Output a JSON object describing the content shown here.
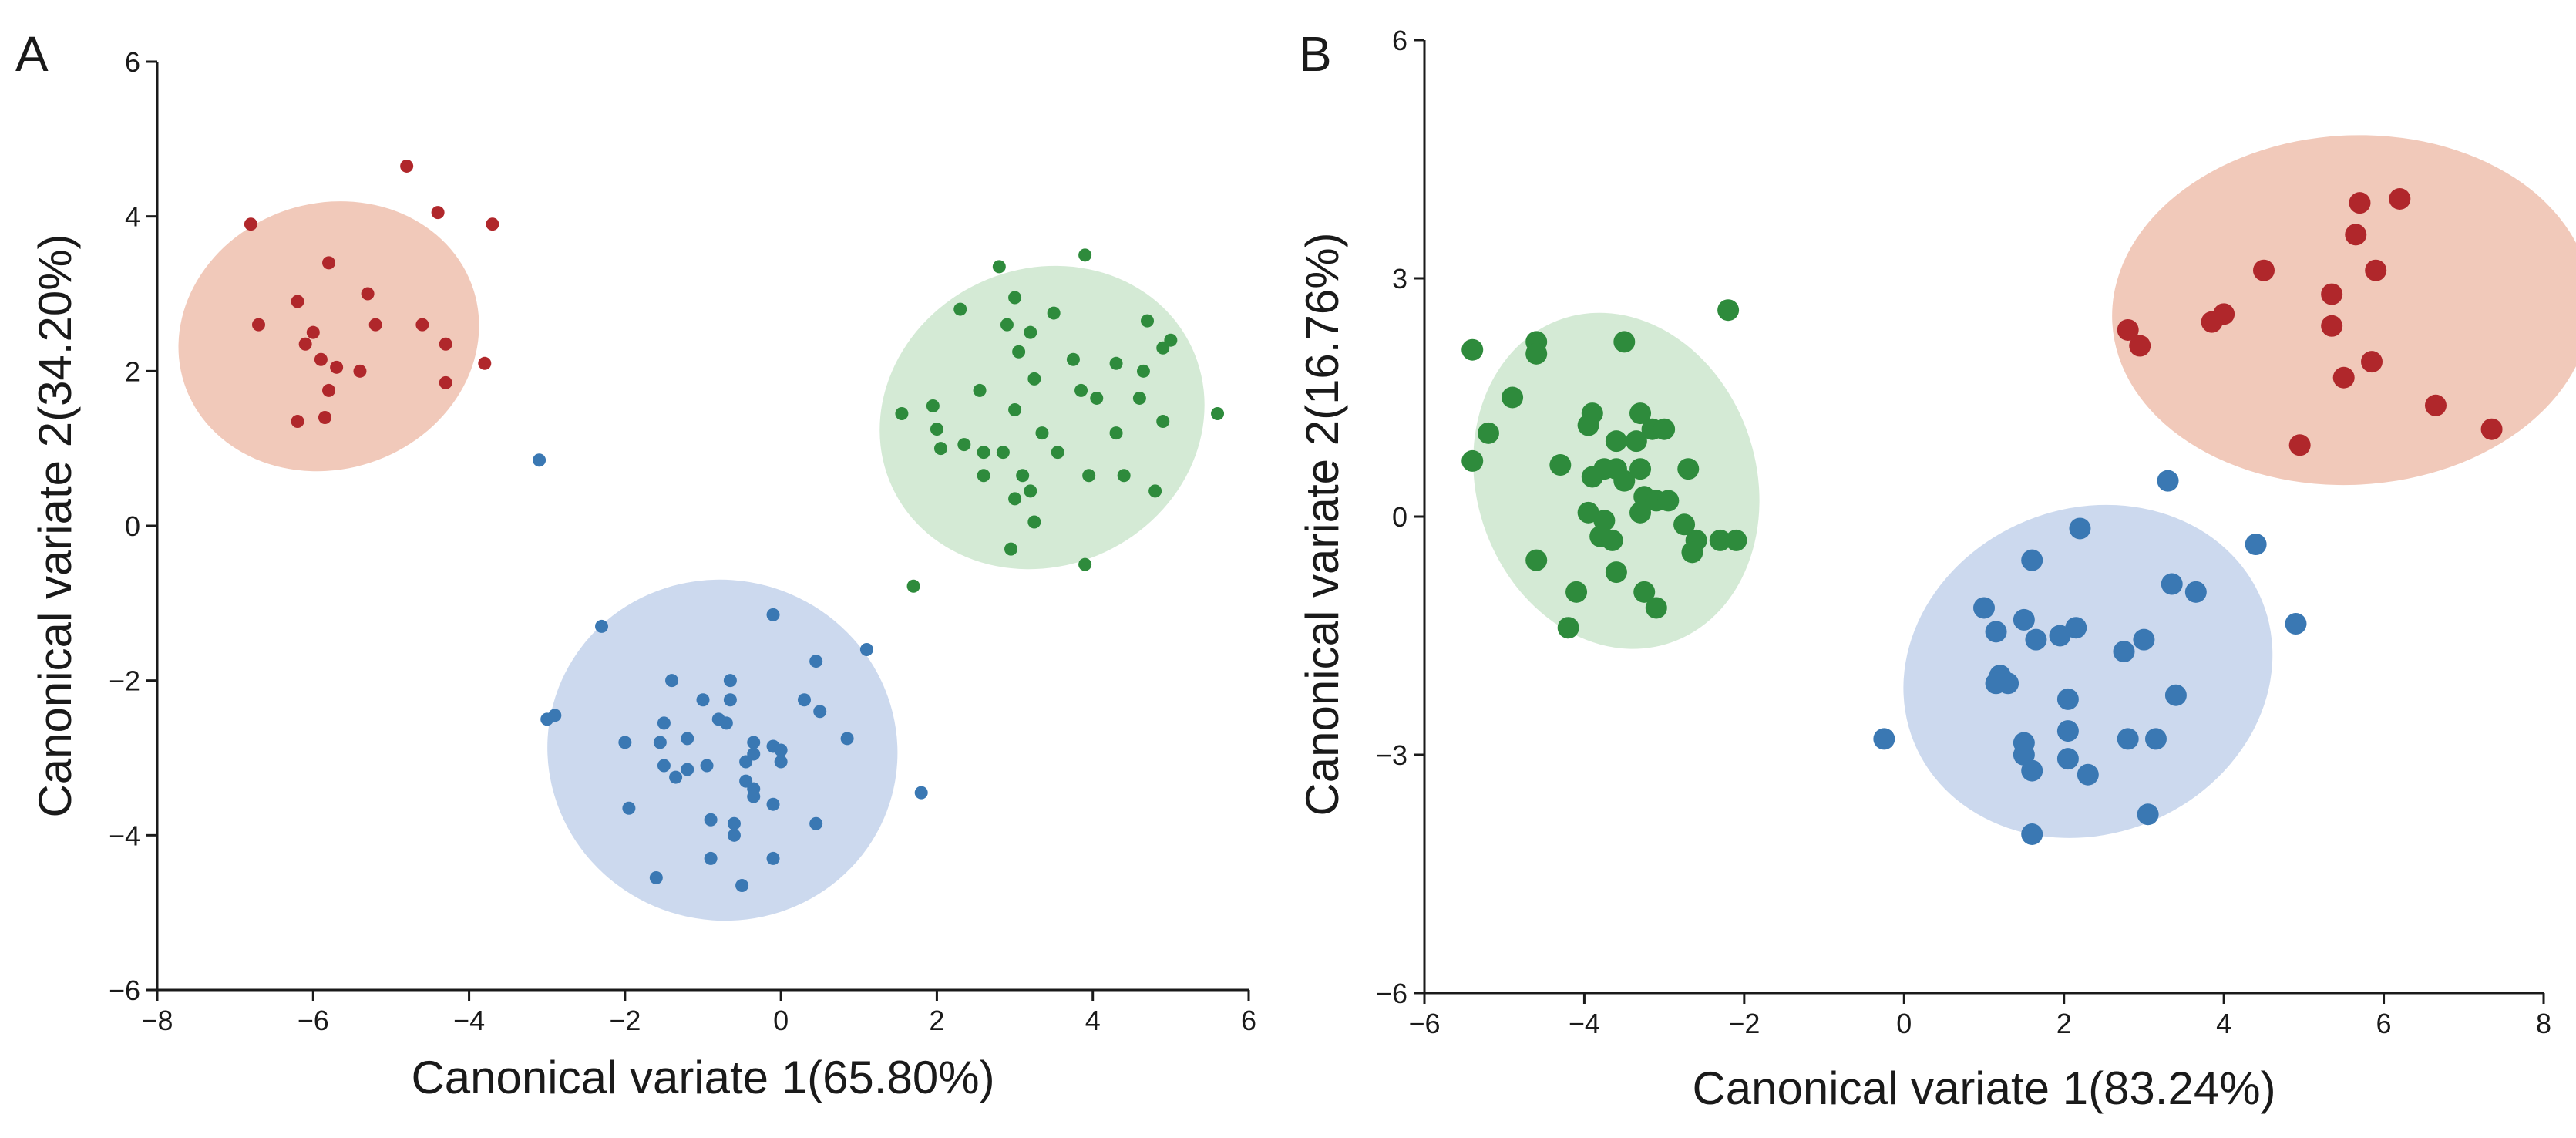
{
  "chart_data": [
    {
      "type": "scatter",
      "panel_label": "A",
      "xlabel": "Canonical variate 1(65.80%)",
      "ylabel": "Canonical variate 2(34.20%)",
      "xlim": [
        -8,
        6
      ],
      "ylim": [
        -6,
        6
      ],
      "xticks": [
        -8,
        -6,
        -4,
        -2,
        0,
        2,
        4,
        6
      ],
      "yticks": [
        -6,
        -4,
        -2,
        0,
        2,
        4,
        6
      ],
      "xtick_labels": [
        "−8",
        "−6",
        "−4",
        "−2",
        "0",
        "2",
        "4",
        "6"
      ],
      "ytick_labels": [
        "−6",
        "−4",
        "−2",
        "0",
        "2",
        "4",
        "6"
      ],
      "grid": false,
      "legend": "none",
      "point_style": "small",
      "series": [
        {
          "color": "#b0272b",
          "ellipse_color": "#efbfae",
          "ellipse": {
            "cx": -5.8,
            "cy": 2.45,
            "rx": 1.95,
            "ry": 1.72,
            "angle": -18
          },
          "points": [
            [
              -6.8,
              3.9
            ],
            [
              -4.8,
              4.65
            ],
            [
              -4.4,
              4.05
            ],
            [
              -3.7,
              3.9
            ],
            [
              -6.7,
              2.6
            ],
            [
              -6.2,
              2.9
            ],
            [
              -5.8,
              3.4
            ],
            [
              -5.3,
              3.0
            ],
            [
              -6.0,
              2.5
            ],
            [
              -6.1,
              2.35
            ],
            [
              -5.9,
              2.15
            ],
            [
              -5.7,
              2.05
            ],
            [
              -5.4,
              2.0
            ],
            [
              -5.2,
              2.6
            ],
            [
              -4.6,
              2.6
            ],
            [
              -4.3,
              2.35
            ],
            [
              -3.8,
              2.1
            ],
            [
              -5.8,
              1.75
            ],
            [
              -5.85,
              1.4
            ],
            [
              -6.2,
              1.35
            ],
            [
              -4.3,
              1.85
            ]
          ]
        },
        {
          "color": "#2e8b3c",
          "ellipse_color": "#cde6ce",
          "ellipse": {
            "cx": 3.35,
            "cy": 1.4,
            "rx": 2.12,
            "ry": 1.92,
            "angle": -25
          },
          "points": [
            [
              2.8,
              3.35
            ],
            [
              3.9,
              3.5
            ],
            [
              2.3,
              2.8
            ],
            [
              3.0,
              2.95
            ],
            [
              3.5,
              2.75
            ],
            [
              2.9,
              2.6
            ],
            [
              3.2,
              2.5
            ],
            [
              4.7,
              2.65
            ],
            [
              5.0,
              2.4
            ],
            [
              4.9,
              2.3
            ],
            [
              3.05,
              2.25
            ],
            [
              3.75,
              2.15
            ],
            [
              4.3,
              2.1
            ],
            [
              4.65,
              2.0
            ],
            [
              3.25,
              1.9
            ],
            [
              2.55,
              1.75
            ],
            [
              3.85,
              1.75
            ],
            [
              4.05,
              1.65
            ],
            [
              4.6,
              1.65
            ],
            [
              1.95,
              1.55
            ],
            [
              1.55,
              1.45
            ],
            [
              5.6,
              1.45
            ],
            [
              3.0,
              1.5
            ],
            [
              4.9,
              1.35
            ],
            [
              2.0,
              1.25
            ],
            [
              3.35,
              1.2
            ],
            [
              4.3,
              1.2
            ],
            [
              2.05,
              1.0
            ],
            [
              2.35,
              1.05
            ],
            [
              2.85,
              0.95
            ],
            [
              3.55,
              0.95
            ],
            [
              2.6,
              0.95
            ],
            [
              2.6,
              0.65
            ],
            [
              3.1,
              0.65
            ],
            [
              3.95,
              0.65
            ],
            [
              4.4,
              0.65
            ],
            [
              3.2,
              0.45
            ],
            [
              3.0,
              0.35
            ],
            [
              4.8,
              0.45
            ],
            [
              3.25,
              0.05
            ],
            [
              2.95,
              -0.3
            ],
            [
              3.9,
              -0.5
            ],
            [
              1.7,
              -0.78
            ]
          ]
        },
        {
          "color": "#3a78b3",
          "ellipse_color": "#c3d2eb",
          "ellipse": {
            "cx": -0.75,
            "cy": -2.9,
            "rx": 2.25,
            "ry": 2.2,
            "angle": 15
          },
          "points": [
            [
              -3.1,
              0.85
            ],
            [
              -0.1,
              -1.15
            ],
            [
              1.1,
              -1.6
            ],
            [
              -2.3,
              -1.3
            ],
            [
              0.45,
              -1.75
            ],
            [
              -1.4,
              -2.0
            ],
            [
              -0.65,
              -2.0
            ],
            [
              -1.0,
              -2.25
            ],
            [
              -0.65,
              -2.25
            ],
            [
              0.3,
              -2.25
            ],
            [
              -3.0,
              -2.5
            ],
            [
              -2.9,
              -2.45
            ],
            [
              -1.5,
              -2.55
            ],
            [
              -0.8,
              -2.5
            ],
            [
              -0.7,
              -2.55
            ],
            [
              0.5,
              -2.4
            ],
            [
              -2.0,
              -2.8
            ],
            [
              -1.55,
              -2.8
            ],
            [
              -1.2,
              -2.75
            ],
            [
              -0.35,
              -2.8
            ],
            [
              -0.1,
              -2.85
            ],
            [
              0.85,
              -2.75
            ],
            [
              0.0,
              -2.9
            ],
            [
              -0.35,
              -2.95
            ],
            [
              -1.5,
              -3.1
            ],
            [
              -1.2,
              -3.15
            ],
            [
              -0.95,
              -3.1
            ],
            [
              -0.45,
              -3.05
            ],
            [
              0.0,
              -3.05
            ],
            [
              -1.35,
              -3.25
            ],
            [
              -0.45,
              -3.3
            ],
            [
              -0.35,
              -3.4
            ],
            [
              -0.35,
              -3.5
            ],
            [
              -0.1,
              -3.6
            ],
            [
              -1.95,
              -3.65
            ],
            [
              -0.9,
              -3.8
            ],
            [
              -0.6,
              -3.85
            ],
            [
              0.45,
              -3.85
            ],
            [
              1.8,
              -3.45
            ],
            [
              -0.6,
              -4.0
            ],
            [
              -0.9,
              -4.3
            ],
            [
              -0.1,
              -4.3
            ],
            [
              -1.6,
              -4.55
            ],
            [
              -0.5,
              -4.65
            ]
          ]
        }
      ]
    },
    {
      "type": "scatter",
      "panel_label": "B",
      "xlabel": "Canonical variate 1(83.24%)",
      "ylabel": "Canonical variate 2(16.76%)",
      "xlim": [
        -6,
        8
      ],
      "ylim": [
        -6,
        6
      ],
      "xticks": [
        -6,
        -4,
        -2,
        0,
        2,
        4,
        6,
        8
      ],
      "yticks": [
        -6,
        -3,
        0,
        3,
        6
      ],
      "xtick_labels": [
        "−6",
        "−4",
        "−2",
        "0",
        "2",
        "4",
        "6",
        "8"
      ],
      "ytick_labels": [
        "−6",
        "−3",
        "0",
        "3",
        "6"
      ],
      "grid": false,
      "legend": "none",
      "point_style": "large",
      "series": [
        {
          "color": "#b0272b",
          "ellipse_color": "#efbfae",
          "ellipse": {
            "cx": 5.6,
            "cy": 2.6,
            "rx": 3.0,
            "ry": 2.2,
            "angle": -3
          },
          "points": [
            [
              5.7,
              3.95
            ],
            [
              6.2,
              4.0
            ],
            [
              5.65,
              3.55
            ],
            [
              4.5,
              3.1
            ],
            [
              5.9,
              3.1
            ],
            [
              5.35,
              2.8
            ],
            [
              4.0,
              2.55
            ],
            [
              3.85,
              2.45
            ],
            [
              5.35,
              2.4
            ],
            [
              2.8,
              2.35
            ],
            [
              2.95,
              2.15
            ],
            [
              5.85,
              1.95
            ],
            [
              5.5,
              1.75
            ],
            [
              6.65,
              1.4
            ],
            [
              7.35,
              1.1
            ],
            [
              4.95,
              0.9
            ]
          ]
        },
        {
          "color": "#2e8b3c",
          "ellipse_color": "#cde6ce",
          "ellipse": {
            "cx": -3.6,
            "cy": 0.45,
            "rx": 1.75,
            "ry": 2.15,
            "angle": -18
          },
          "points": [
            [
              -2.2,
              2.6
            ],
            [
              -4.6,
              2.2
            ],
            [
              -3.5,
              2.2
            ],
            [
              -5.4,
              2.1
            ],
            [
              -4.6,
              2.05
            ],
            [
              -4.9,
              1.5
            ],
            [
              -3.9,
              1.3
            ],
            [
              -3.3,
              1.3
            ],
            [
              -3.95,
              1.15
            ],
            [
              -3.15,
              1.1
            ],
            [
              -3.0,
              1.1
            ],
            [
              -5.2,
              1.05
            ],
            [
              -3.6,
              0.95
            ],
            [
              -3.35,
              0.95
            ],
            [
              -5.4,
              0.7
            ],
            [
              -4.3,
              0.65
            ],
            [
              -3.75,
              0.6
            ],
            [
              -3.6,
              0.6
            ],
            [
              -3.3,
              0.6
            ],
            [
              -2.7,
              0.6
            ],
            [
              -3.9,
              0.5
            ],
            [
              -3.5,
              0.45
            ],
            [
              -3.25,
              0.25
            ],
            [
              -3.1,
              0.2
            ],
            [
              -2.95,
              0.2
            ],
            [
              -3.95,
              0.05
            ],
            [
              -3.3,
              0.05
            ],
            [
              -3.75,
              -0.05
            ],
            [
              -2.75,
              -0.1
            ],
            [
              -3.8,
              -0.25
            ],
            [
              -3.65,
              -0.3
            ],
            [
              -2.6,
              -0.3
            ],
            [
              -2.3,
              -0.3
            ],
            [
              -2.1,
              -0.3
            ],
            [
              -2.65,
              -0.45
            ],
            [
              -4.6,
              -0.55
            ],
            [
              -3.6,
              -0.7
            ],
            [
              -4.1,
              -0.95
            ],
            [
              -3.25,
              -0.95
            ],
            [
              -3.1,
              -1.15
            ],
            [
              -4.2,
              -1.4
            ]
          ]
        },
        {
          "color": "#3a78b3",
          "ellipse_color": "#c3d2eb",
          "ellipse": {
            "cx": 2.3,
            "cy": -1.95,
            "rx": 2.35,
            "ry": 2.05,
            "angle": -22
          },
          "points": [
            [
              3.3,
              0.45
            ],
            [
              2.2,
              -0.15
            ],
            [
              4.4,
              -0.35
            ],
            [
              1.6,
              -0.55
            ],
            [
              3.35,
              -0.85
            ],
            [
              3.65,
              -0.95
            ],
            [
              1.0,
              -1.15
            ],
            [
              1.5,
              -1.3
            ],
            [
              2.15,
              -1.4
            ],
            [
              1.15,
              -1.45
            ],
            [
              4.9,
              -1.35
            ],
            [
              1.95,
              -1.5
            ],
            [
              1.65,
              -1.55
            ],
            [
              3.0,
              -1.55
            ],
            [
              2.75,
              -1.7
            ],
            [
              1.2,
              -2.0
            ],
            [
              1.15,
              -2.1
            ],
            [
              1.3,
              -2.1
            ],
            [
              2.05,
              -2.3
            ],
            [
              3.4,
              -2.25
            ],
            [
              2.05,
              -2.7
            ],
            [
              -0.25,
              -2.8
            ],
            [
              1.5,
              -2.85
            ],
            [
              2.8,
              -2.8
            ],
            [
              3.15,
              -2.8
            ],
            [
              1.5,
              -3.0
            ],
            [
              2.05,
              -3.05
            ],
            [
              1.6,
              -3.2
            ],
            [
              2.3,
              -3.25
            ],
            [
              3.05,
              -3.75
            ],
            [
              1.6,
              -4.0
            ]
          ]
        }
      ]
    }
  ]
}
